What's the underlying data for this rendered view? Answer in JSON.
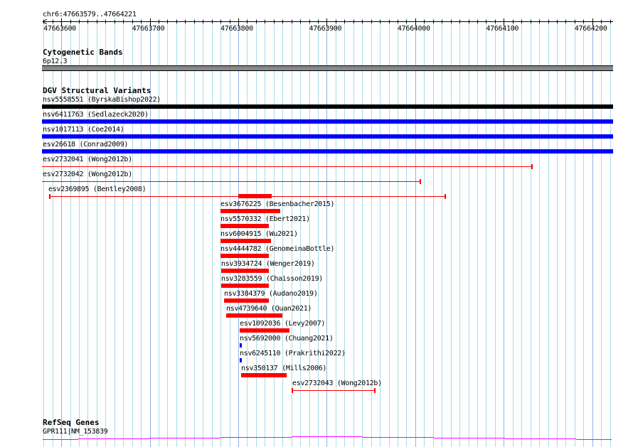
{
  "location": "chr6:47663579..47664221",
  "ruler": {
    "labels": [
      "47663600",
      "47663700",
      "47663800",
      "47663900",
      "47664000",
      "47664100",
      "47664200"
    ],
    "arrow_icon": "left-arrow-icon"
  },
  "cyto": {
    "title": "Cytogenetic Bands",
    "band": "6p12.3"
  },
  "dgv": {
    "title": "DGV Structural Variants",
    "items": [
      {
        "label": "nsv5558551 (ByrskaBishop2022)"
      },
      {
        "label": "nsv6411763 (Sedlazeck2020)"
      },
      {
        "label": "nsv1017113 (Coe2014)"
      },
      {
        "label": "esv26618 (Conrad2009)"
      },
      {
        "label": "esv2732041 (Wong2012b)"
      },
      {
        "label": "esv2732042 (Wong2012b)"
      },
      {
        "label": "esv2369895 (Bentley2008)"
      },
      {
        "label": "esv3676225 (Besenbacher2015)"
      },
      {
        "label": "nsv5570332 (Ebert2021)"
      },
      {
        "label": "nsv6004915 (Wu2021)"
      },
      {
        "label": "nsv4444782 (GenomeinaBottle)"
      },
      {
        "label": "nsv3934724 (Wenger2019)"
      },
      {
        "label": "nsv3283559 (Chaisson2019)"
      },
      {
        "label": "nsv3384379 (Audano2019)"
      },
      {
        "label": "nsv4739640 (Quan2021)"
      },
      {
        "label": "esv1092036 (Levy2007)"
      },
      {
        "label": "nsv5692000 (Chuang2021)"
      },
      {
        "label": "nsv6245110 (Prakrithi2022)"
      },
      {
        "label": "nsv350137 (Mills2006)"
      },
      {
        "label": "esv2732043 (Wong2012b)"
      }
    ]
  },
  "refseq": {
    "title": "RefSeq Genes",
    "gene": "GPR111|NM_153839"
  },
  "colors": {
    "black": "#000000",
    "blue": "#0000ff",
    "red": "#ff0000",
    "gene": "#ff00ff",
    "grid": "#a8dcea",
    "grid_major": "#8cb4e6",
    "band": "#888888"
  }
}
